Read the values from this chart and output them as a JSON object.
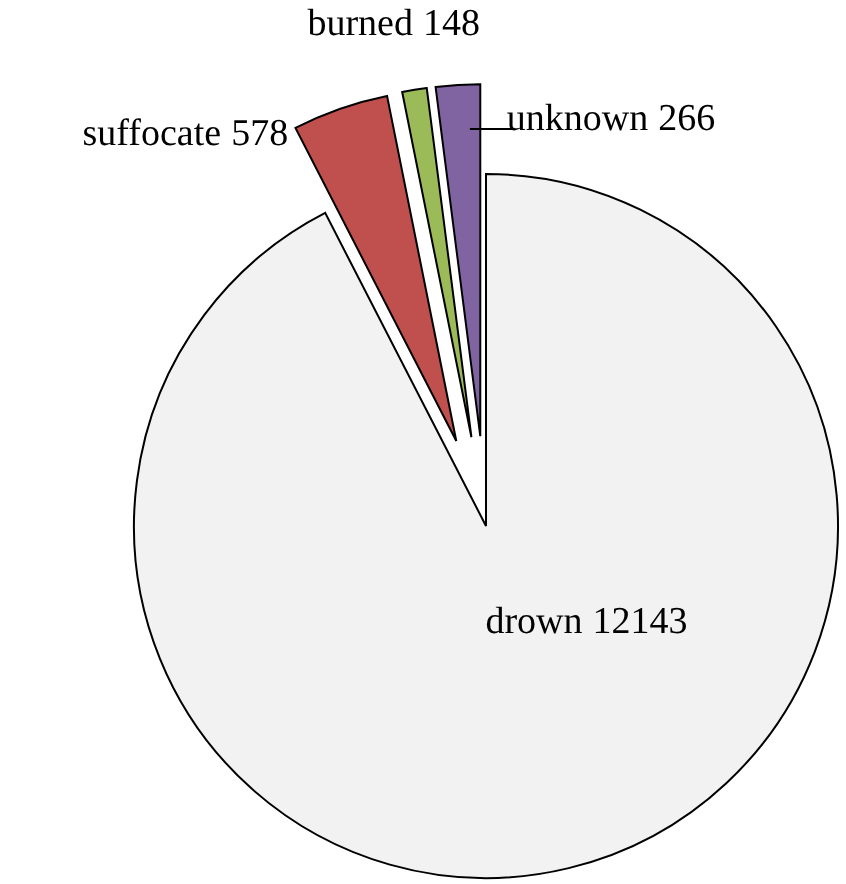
{
  "chart_data": {
    "type": "pie",
    "categories": [
      "drown",
      "suffocate",
      "burned",
      "unknown"
    ],
    "values": [
      12143,
      578,
      148,
      266
    ],
    "colors": [
      "#f2f2f2",
      "#c0504d",
      "#9bbb59",
      "#8064a2"
    ],
    "data_labels": true
  }
}
